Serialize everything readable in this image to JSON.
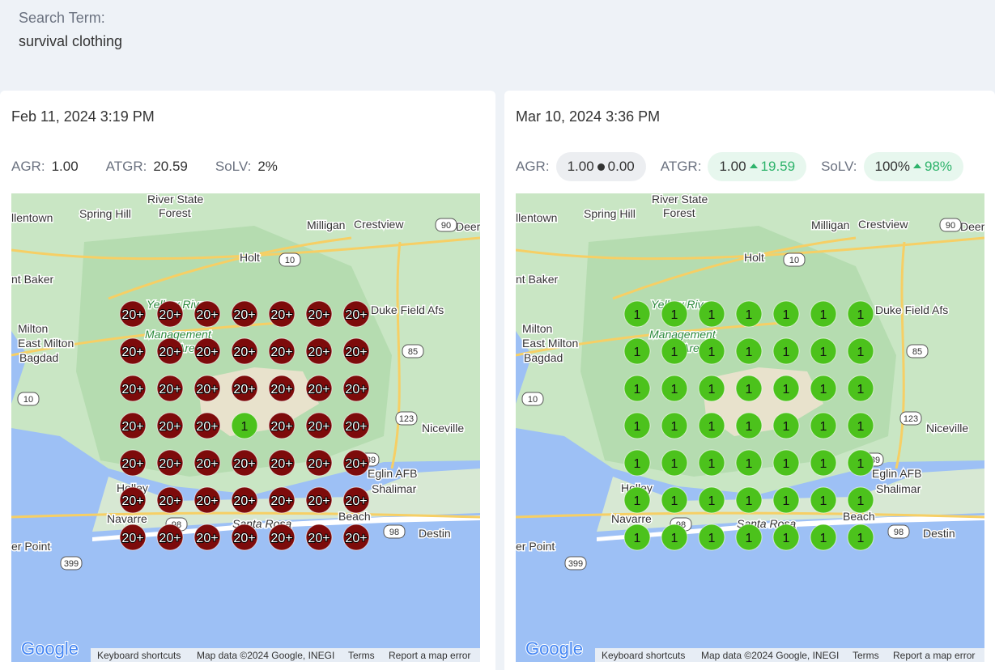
{
  "search": {
    "label": "Search Term:",
    "term": "survival clothing"
  },
  "palette": {
    "20+": {
      "fill": "#7d0b0b",
      "text": "#ffffff"
    },
    "1": {
      "fill": "#4cc21c",
      "text": "#111111"
    }
  },
  "map_labels": [
    "River State",
    "Forest",
    "llentown",
    "Spring Hill",
    "Milligan",
    "Crestview",
    "Deer",
    "Holt",
    "nt Baker",
    "Yellow River",
    "Management",
    "Area",
    "Duke Field Afs",
    "Milton",
    "East Milton",
    "Bagdad",
    "Niceville",
    "Eglin AFB",
    "Holley",
    "Shalimar",
    "Navarre",
    "Santa Rosa",
    "Beach",
    "Destin",
    "er Point"
  ],
  "map_shields": [
    "90",
    "10",
    "85",
    "10",
    "123",
    "189",
    "98",
    "98",
    "399"
  ],
  "map_footer": {
    "logo": "Google",
    "links": [
      "Keyboard shortcuts",
      "Map data ©2024 Google, INEGI",
      "Terms",
      "Report a map error"
    ]
  },
  "panels": [
    {
      "date": "Feb 11, 2024 3:19 PM",
      "metrics": [
        {
          "label": "AGR:",
          "value": "1.00"
        },
        {
          "label": "ATGR:",
          "value": "20.59"
        },
        {
          "label": "SoLV:",
          "value": "2%"
        }
      ],
      "grid": [
        [
          "20+",
          "20+",
          "20+",
          "20+",
          "20+",
          "20+",
          "20+"
        ],
        [
          "20+",
          "20+",
          "20+",
          "20+",
          "20+",
          "20+",
          "20+"
        ],
        [
          "20+",
          "20+",
          "20+",
          "20+",
          "20+",
          "20+",
          "20+"
        ],
        [
          "20+",
          "20+",
          "20+",
          "1",
          "20+",
          "20+",
          "20+"
        ],
        [
          "20+",
          "20+",
          "20+",
          "20+",
          "20+",
          "20+",
          "20+"
        ],
        [
          "20+",
          "20+",
          "20+",
          "20+",
          "20+",
          "20+",
          "20+"
        ],
        [
          "20+",
          "20+",
          "20+",
          "20+",
          "20+",
          "20+",
          "20+"
        ]
      ]
    },
    {
      "date": "Mar 10, 2024 3:36 PM",
      "metrics": [
        {
          "label": "AGR:",
          "value": "1.00",
          "change": "0.00",
          "trend": "flat"
        },
        {
          "label": "ATGR:",
          "value": "1.00",
          "change": "19.59",
          "trend": "up"
        },
        {
          "label": "SoLV:",
          "value": "100%",
          "change": "98%",
          "trend": "up"
        }
      ],
      "grid": [
        [
          "1",
          "1",
          "1",
          "1",
          "1",
          "1",
          "1"
        ],
        [
          "1",
          "1",
          "1",
          "1",
          "1",
          "1",
          "1"
        ],
        [
          "1",
          "1",
          "1",
          "1",
          "1",
          "1",
          "1"
        ],
        [
          "1",
          "1",
          "1",
          "1",
          "1",
          "1",
          "1"
        ],
        [
          "1",
          "1",
          "1",
          "1",
          "1",
          "1",
          "1"
        ],
        [
          "1",
          "1",
          "1",
          "1",
          "1",
          "1",
          "1"
        ],
        [
          "1",
          "1",
          "1",
          "1",
          "1",
          "1",
          "1"
        ]
      ]
    }
  ]
}
